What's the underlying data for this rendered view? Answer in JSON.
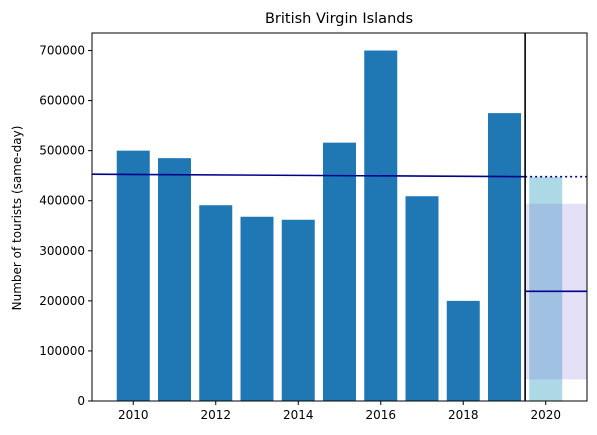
{
  "chart_data": {
    "type": "bar",
    "title": "British Virgin Islands",
    "xlabel": "",
    "ylabel": "Number of tourists (same-day)",
    "xlim": [
      2009,
      2021
    ],
    "ylim": [
      0,
      735000
    ],
    "x_ticks": [
      2010,
      2012,
      2014,
      2016,
      2018,
      2020
    ],
    "y_ticks": [
      0,
      100000,
      200000,
      300000,
      400000,
      500000,
      600000,
      700000
    ],
    "grid": false,
    "bar_color": "#1f77b4",
    "categories": [
      2010,
      2011,
      2012,
      2013,
      2014,
      2015,
      2016,
      2017,
      2018,
      2019
    ],
    "values": [
      500000,
      485000,
      391000,
      368000,
      362000,
      516000,
      700000,
      409000,
      200000,
      575000
    ],
    "trend_line": {
      "color": "#00008b",
      "x": [
        2009,
        2019.5
      ],
      "y": [
        453000,
        448000
      ]
    },
    "trend_extension": {
      "color": "#00008b",
      "style": "dotted",
      "x": [
        2019.5,
        2021
      ],
      "y": [
        448000,
        448000
      ]
    },
    "cutoff_line": {
      "x": 2019.5,
      "color": "#000000"
    },
    "forecast_bar": {
      "x": 2020,
      "value": 447000,
      "color": "#add8e6"
    },
    "forecast_band": {
      "x": [
        2019.5,
        2021
      ],
      "y": [
        43000,
        394000
      ],
      "color": "#6a5acd"
    },
    "forecast_mean": {
      "color": "#00008b",
      "x": [
        2019.5,
        2021
      ],
      "y": [
        219000,
        219000
      ]
    }
  }
}
